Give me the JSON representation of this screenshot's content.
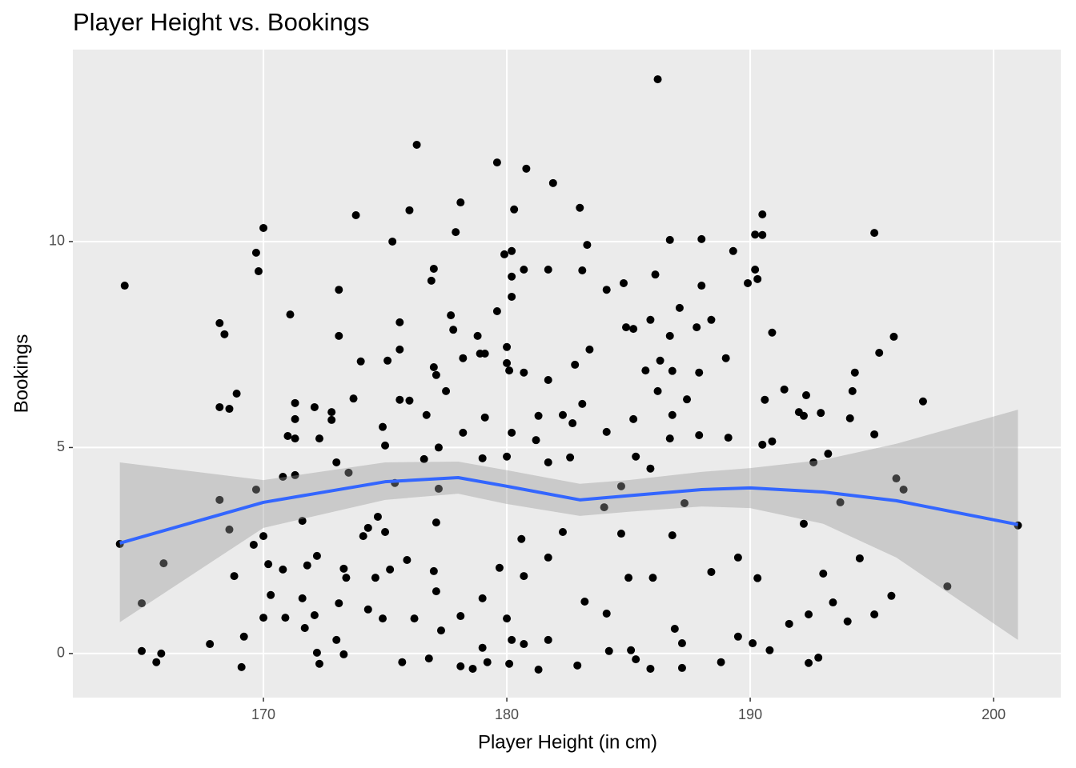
{
  "chart_data": {
    "type": "scatter",
    "title": "Player Height vs. Bookings",
    "x_label": "Player Height (in cm)",
    "y_label": "Bookings",
    "xlim": [
      162.17,
      202.76
    ],
    "ylim": [
      -1.07,
      14.66
    ],
    "xticks": [
      170,
      180,
      190,
      200
    ],
    "yticks": [
      0,
      5,
      10
    ],
    "grid": true,
    "color": "#000000",
    "x": [
      164.3,
      164.1,
      165.0,
      165.0,
      165.6,
      165.8,
      165.9,
      167.8,
      168.2,
      168.4,
      168.2,
      168.6,
      168.9,
      168.2,
      168.6,
      168.8,
      169.1,
      169.2,
      169.7,
      169.8,
      170.0,
      169.7,
      169.6,
      170.0,
      170.2,
      170.3,
      170.0,
      170.8,
      170.8,
      170.9,
      171.1,
      171.3,
      171.3,
      171.3,
      171.0,
      171.3,
      171.6,
      171.6,
      171.8,
      171.7,
      172.1,
      172.1,
      172.3,
      172.2,
      172.2,
      172.3,
      172.8,
      172.8,
      173.1,
      173.1,
      173.0,
      173.0,
      173.3,
      173.3,
      173.4,
      173.1,
      173.5,
      173.7,
      173.8,
      174.0,
      174.1,
      174.3,
      174.3,
      174.6,
      174.7,
      175.0,
      174.9,
      175.1,
      175.0,
      174.9,
      175.2,
      175.3,
      175.4,
      175.6,
      175.6,
      175.6,
      176.0,
      175.9,
      175.7,
      176.0,
      176.3,
      176.2,
      176.6,
      176.7,
      176.9,
      177.0,
      177.0,
      177.1,
      177.2,
      177.2,
      177.1,
      177.0,
      177.1,
      177.3,
      176.8,
      177.5,
      177.7,
      177.8,
      177.9,
      178.1,
      178.2,
      178.2,
      178.1,
      178.1,
      178.6,
      178.8,
      178.9,
      179.1,
      179.0,
      179.1,
      179.0,
      179.0,
      179.2,
      179.6,
      179.6,
      179.9,
      180.0,
      180.0,
      180.1,
      180.2,
      180.2,
      180.2,
      180.3,
      180.2,
      180.0,
      179.7,
      180.0,
      180.2,
      180.1,
      180.8,
      180.7,
      180.7,
      180.6,
      180.7,
      180.7,
      181.3,
      181.2,
      181.3,
      181.9,
      181.7,
      181.7,
      181.7,
      181.7,
      181.7,
      182.3,
      182.3,
      182.6,
      182.7,
      182.8,
      183.0,
      183.1,
      183.1,
      182.9,
      183.3,
      183.4,
      183.2,
      184.1,
      184.1,
      184.0,
      184.1,
      184.2,
      184.8,
      184.9,
      184.7,
      184.7,
      185.0,
      185.2,
      185.2,
      185.3,
      185.1,
      185.3,
      185.7,
      185.9,
      186.1,
      186.2,
      186.3,
      186.2,
      185.9,
      186.0,
      185.9,
      186.7,
      186.7,
      186.8,
      186.8,
      186.7,
      186.8,
      186.9,
      187.1,
      187.4,
      187.3,
      187.2,
      187.2,
      187.8,
      188.0,
      188.0,
      187.9,
      187.9,
      188.4,
      188.4,
      188.8,
      189.0,
      189.1,
      189.3,
      189.5,
      189.5,
      189.9,
      190.2,
      190.2,
      190.3,
      190.5,
      190.5,
      190.6,
      190.5,
      190.3,
      190.1,
      190.9,
      190.9,
      190.8,
      191.4,
      191.6,
      192.0,
      192.2,
      192.2,
      192.4,
      192.4,
      192.3,
      192.6,
      192.9,
      192.8,
      193.0,
      193.2,
      193.4,
      193.7,
      194.0,
      194.1,
      194.2,
      194.3,
      194.5,
      195.1,
      195.1,
      195.1,
      195.3,
      195.9,
      195.8,
      196.0,
      196.3,
      197.1,
      198.1,
      201.0
    ],
    "y": [
      8.93,
      2.66,
      1.22,
      0.06,
      -0.21,
      0.0,
      2.19,
      0.23,
      8.02,
      7.75,
      5.98,
      5.94,
      6.31,
      3.73,
      3.01,
      1.88,
      -0.33,
      0.41,
      9.73,
      9.28,
      10.33,
      3.98,
      2.64,
      2.85,
      2.17,
      1.42,
      0.87,
      4.29,
      2.04,
      0.87,
      8.23,
      6.08,
      5.69,
      5.22,
      5.28,
      4.33,
      3.22,
      1.34,
      2.14,
      0.62,
      0.93,
      5.98,
      5.22,
      2.37,
      0.02,
      -0.25,
      5.86,
      5.67,
      8.83,
      7.71,
      4.64,
      0.33,
      -0.02,
      2.06,
      1.84,
      1.22,
      4.39,
      6.19,
      10.64,
      7.09,
      2.85,
      3.05,
      1.07,
      1.84,
      3.32,
      5.05,
      5.5,
      7.11,
      2.95,
      0.85,
      2.04,
      10.0,
      4.14,
      8.04,
      7.38,
      6.16,
      6.14,
      2.27,
      -0.21,
      10.76,
      12.35,
      0.85,
      4.72,
      5.79,
      9.05,
      9.34,
      6.95,
      6.76,
      5.0,
      4.0,
      3.18,
      2.0,
      1.51,
      0.56,
      -0.12,
      6.37,
      8.21,
      7.86,
      10.23,
      10.95,
      7.17,
      5.36,
      0.91,
      -0.31,
      -0.37,
      7.71,
      7.28,
      7.28,
      4.74,
      5.73,
      1.34,
      0.14,
      -0.21,
      11.92,
      8.31,
      9.69,
      7.05,
      7.44,
      6.87,
      9.15,
      8.66,
      9.77,
      10.78,
      5.36,
      4.78,
      2.08,
      0.85,
      0.33,
      -0.25,
      11.77,
      6.82,
      9.32,
      2.78,
      1.88,
      0.23,
      5.77,
      5.18,
      -0.39,
      11.42,
      9.32,
      6.64,
      4.64,
      2.33,
      0.33,
      5.79,
      2.95,
      4.76,
      5.59,
      7.01,
      10.82,
      9.3,
      6.06,
      -0.29,
      9.92,
      7.38,
      1.26,
      8.83,
      5.38,
      3.55,
      0.97,
      0.06,
      8.99,
      7.92,
      4.06,
      2.91,
      1.84,
      7.88,
      5.69,
      4.78,
      0.08,
      -0.14,
      6.87,
      8.1,
      9.2,
      13.94,
      7.11,
      6.37,
      4.49,
      1.84,
      -0.37,
      10.04,
      7.71,
      6.86,
      5.79,
      5.22,
      2.87,
      0.6,
      8.39,
      6.17,
      3.65,
      0.25,
      -0.35,
      7.92,
      10.06,
      8.93,
      6.82,
      5.3,
      8.1,
      1.98,
      -0.21,
      7.17,
      5.24,
      9.77,
      2.33,
      0.41,
      8.99,
      10.17,
      9.32,
      9.09,
      10.66,
      10.16,
      6.16,
      5.07,
      1.83,
      0.25,
      7.79,
      5.15,
      0.08,
      6.41,
      0.72,
      5.86,
      5.77,
      3.15,
      0.95,
      -0.23,
      6.27,
      4.64,
      5.84,
      -0.1,
      1.94,
      4.85,
      1.24,
      3.67,
      0.78,
      5.71,
      6.37,
      6.82,
      2.31,
      10.21,
      5.32,
      0.95,
      7.3,
      7.69,
      1.4,
      4.25,
      3.98,
      6.12,
      1.63,
      3.11
    ],
    "smooth": {
      "color": "#3366ff",
      "band_color": "#999999",
      "x": [
        164.1,
        170,
        175,
        178,
        180,
        183,
        185,
        188,
        190,
        193,
        196,
        201
      ],
      "y": [
        2.68,
        3.67,
        4.17,
        4.27,
        4.06,
        3.73,
        3.83,
        3.98,
        4.02,
        3.92,
        3.71,
        3.13
      ],
      "ymin": [
        0.76,
        3.05,
        3.73,
        3.88,
        3.63,
        3.34,
        3.44,
        3.57,
        3.53,
        3.15,
        2.33,
        0.33
      ],
      "ymax": [
        4.64,
        4.21,
        4.64,
        4.66,
        4.45,
        4.12,
        4.21,
        4.41,
        4.5,
        4.7,
        5.09,
        5.92
      ]
    }
  }
}
